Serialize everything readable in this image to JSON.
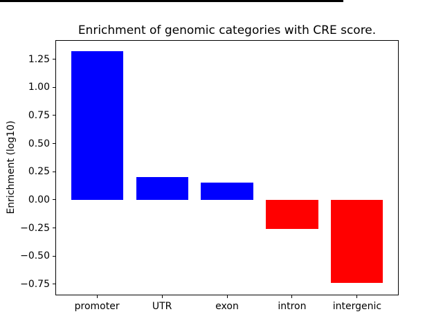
{
  "chart_data": {
    "type": "bar",
    "title": "Enrichment of genomic categories with CRE score.",
    "xlabel": "",
    "ylabel": "Enrichment (log10)",
    "categories": [
      "promoter",
      "UTR",
      "exon",
      "intron",
      "intergenic"
    ],
    "values": [
      1.32,
      0.2,
      0.15,
      -0.26,
      -0.74
    ],
    "bar_colors": [
      "#0000ff",
      "#0000ff",
      "#0000ff",
      "#ff0000",
      "#ff0000"
    ],
    "positive_color": "#0000ff",
    "negative_color": "#ff0000",
    "yticks": [
      1.25,
      1.0,
      0.75,
      0.5,
      0.25,
      0.0,
      -0.25,
      -0.5,
      -0.75
    ],
    "ytick_labels": [
      "1.25",
      "1.00",
      "0.75",
      "0.50",
      "0.25",
      "0.00",
      "−0.25",
      "−0.50",
      "−0.75"
    ],
    "ylim": [
      -0.85,
      1.42
    ],
    "xlim": [
      -0.64,
      4.64
    ],
    "bar_width": 0.8,
    "grid": false,
    "legend": false,
    "zero_line": {
      "color": "#000000",
      "thickness_px": 3
    },
    "axes_background": "#ffffff",
    "figure_background": "#ffffff",
    "spine_color": "#000000",
    "text_color": "#000000"
  }
}
